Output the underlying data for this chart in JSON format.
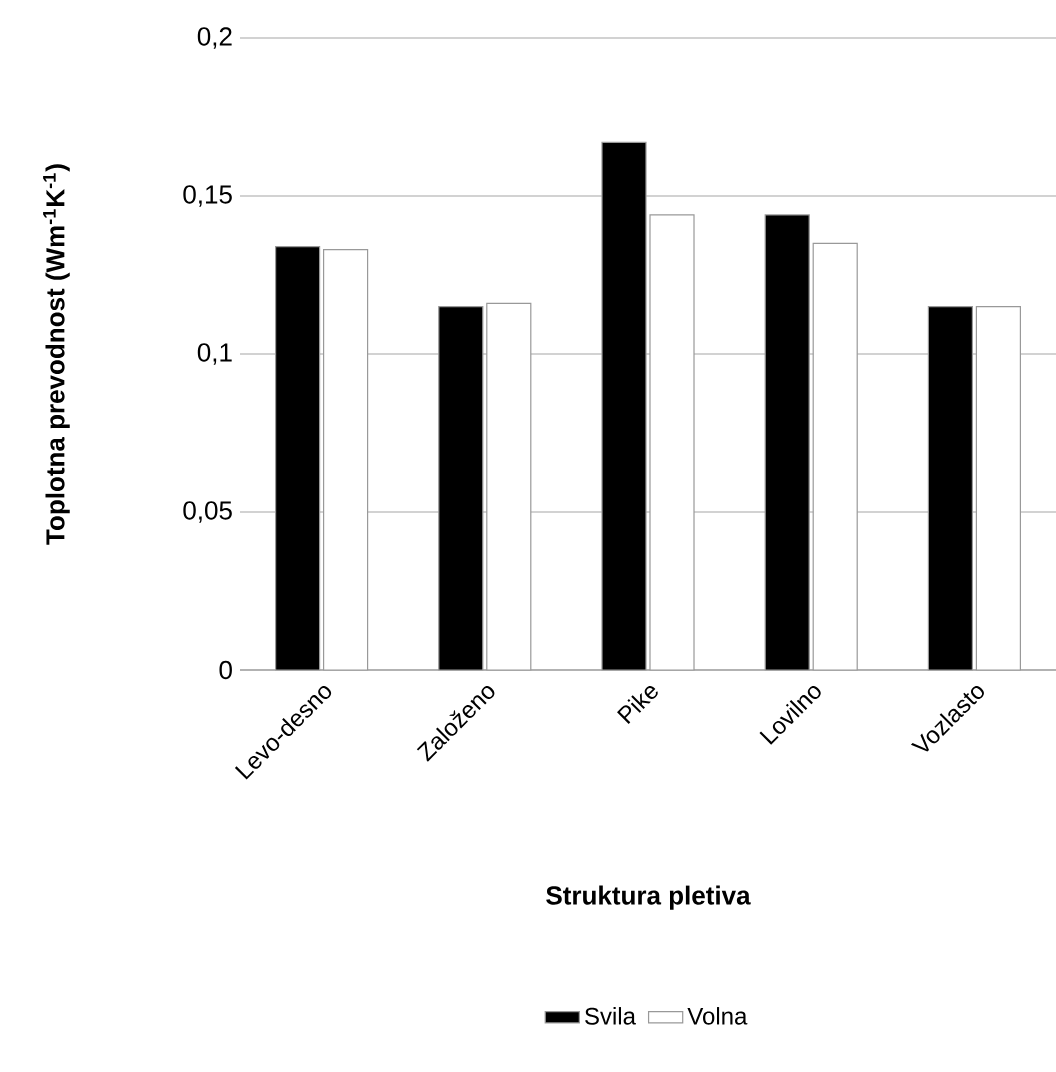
{
  "chart_data": {
    "type": "bar",
    "xlabel": "Struktura pletiva",
    "ylabel": "Toplotna prevodnost (Wm$^{-1}$K$^{-1}$)",
    "categories": [
      "Levo-desno",
      "Založeno",
      "Pike",
      "Lovilno",
      "Vozlasto"
    ],
    "series": [
      {
        "name": "Svila",
        "color": "#000000",
        "values": [
          0.134,
          0.115,
          0.167,
          0.144,
          0.115
        ]
      },
      {
        "name": "Volna",
        "color": "#ffffff",
        "values": [
          0.133,
          0.116,
          0.144,
          0.135,
          0.115
        ]
      }
    ],
    "ylim": [
      0,
      0.2
    ],
    "yticks": [
      0,
      {
        "value": 0.05,
        "label": "0,05"
      },
      {
        "value": 0.1,
        "label": "0,1"
      },
      {
        "value": 0.15,
        "label": "0,15"
      },
      {
        "value": 0.2,
        "label": "0,2"
      }
    ],
    "grid": "y",
    "legend": "bottom"
  }
}
